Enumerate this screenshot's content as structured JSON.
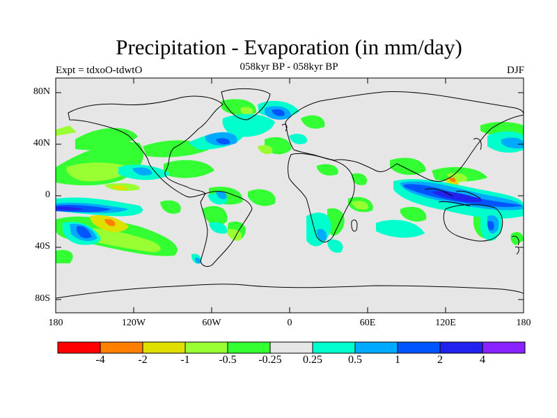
{
  "header": {
    "title": "Precipitation - Evaporation (in mm/day)",
    "subtitle": "058kyr BP - 058kyr BP",
    "experiment": "Expt = tdxoO-tdwtO",
    "season": "DJF"
  },
  "axes": {
    "lat_labels": [
      "80N",
      "40N",
      "0",
      "40S",
      "80S"
    ],
    "lon_labels": [
      "180",
      "120W",
      "60W",
      "0",
      "60E",
      "120E",
      "180"
    ]
  },
  "colorbar": {
    "colors": [
      "#ff0000",
      "#ff8000",
      "#e0e000",
      "#99ff33",
      "#33ff33",
      "#e6e6e6",
      "#00ffcc",
      "#00aaff",
      "#0055ff",
      "#2222ee",
      "#8822ff"
    ],
    "labels": [
      "-4",
      "-2",
      "-1",
      "-0.5",
      "-0.25",
      "0.25",
      "0.5",
      "1",
      "2",
      "4"
    ]
  },
  "map": {
    "background_color": "#e6e6e6",
    "lat_range": [
      -90,
      90
    ],
    "lon_range": [
      -180,
      180
    ]
  }
}
